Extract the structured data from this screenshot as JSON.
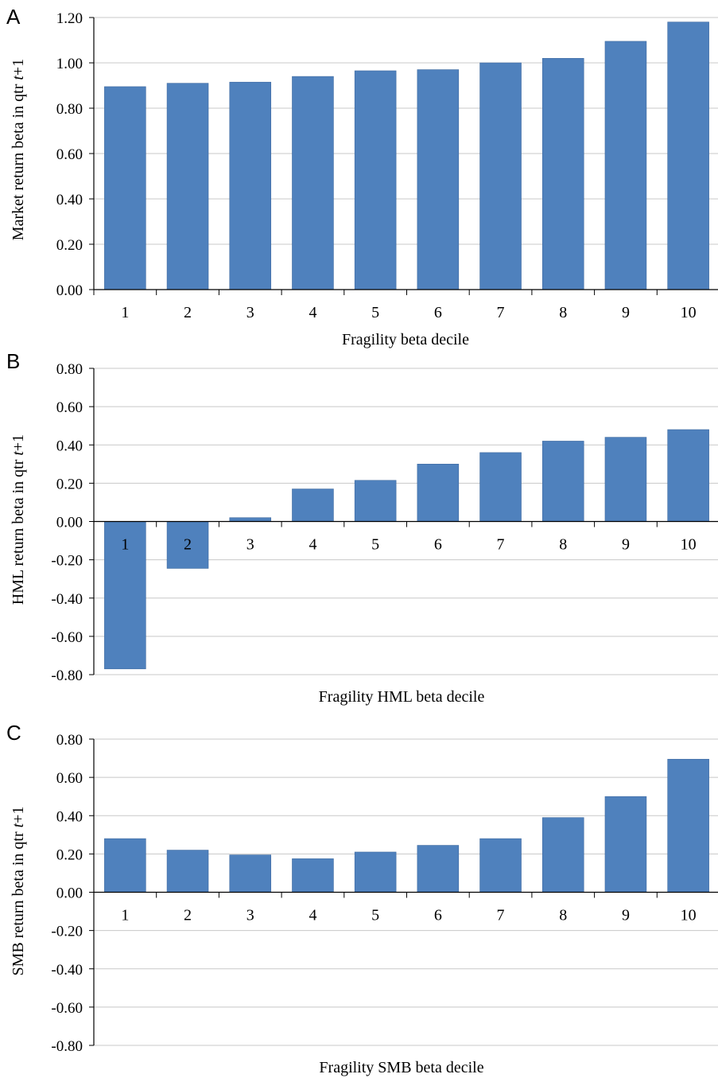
{
  "chart_data": [
    {
      "panel": "A",
      "type": "bar",
      "categories": [
        "1",
        "2",
        "3",
        "4",
        "5",
        "6",
        "7",
        "8",
        "9",
        "10"
      ],
      "values": [
        0.895,
        0.91,
        0.915,
        0.94,
        0.965,
        0.97,
        1.0,
        1.02,
        1.095,
        1.18
      ],
      "ylim": [
        0.0,
        1.2
      ],
      "yticks": [
        "0.00",
        "0.20",
        "0.40",
        "0.60",
        "0.80",
        "1.00",
        "1.20"
      ],
      "xlabel": "Fragility beta decile",
      "ylabel_main": "Market return beta in qtr ",
      "ylabel_italic": "t",
      "ylabel_tail": "+1",
      "labels_position": "below-axis",
      "grid": true,
      "bar_color": "#4f81bd"
    },
    {
      "panel": "B",
      "type": "bar",
      "categories": [
        "1",
        "2",
        "3",
        "4",
        "5",
        "6",
        "7",
        "8",
        "9",
        "10"
      ],
      "values": [
        -0.77,
        -0.245,
        0.02,
        0.17,
        0.215,
        0.3,
        0.36,
        0.42,
        0.44,
        0.48
      ],
      "ylim": [
        -0.8,
        0.8
      ],
      "yticks": [
        "-0.80",
        "-0.60",
        "-0.40",
        "-0.20",
        "0.00",
        "0.20",
        "0.40",
        "0.60",
        "0.80"
      ],
      "xlabel": "Fragility  HML beta decile",
      "ylabel_main": "HML return beta in qtr ",
      "ylabel_italic": "t",
      "ylabel_tail": "+1",
      "labels_position": "at-zero",
      "grid": true,
      "bar_color": "#4f81bd"
    },
    {
      "panel": "C",
      "type": "bar",
      "categories": [
        "1",
        "2",
        "3",
        "4",
        "5",
        "6",
        "7",
        "8",
        "9",
        "10"
      ],
      "values": [
        0.28,
        0.22,
        0.195,
        0.175,
        0.21,
        0.245,
        0.28,
        0.39,
        0.5,
        0.695
      ],
      "ylim": [
        -0.8,
        0.8
      ],
      "yticks": [
        "-0.80",
        "-0.60",
        "-0.40",
        "-0.20",
        "0.00",
        "0.20",
        "0.40",
        "0.60",
        "0.80"
      ],
      "xlabel": "Fragility  SMB beta decile",
      "ylabel_main": "SMB return beta in qtr ",
      "ylabel_italic": "t",
      "ylabel_tail": "+1",
      "labels_position": "at-zero",
      "grid": true,
      "bar_color": "#4f81bd"
    }
  ]
}
